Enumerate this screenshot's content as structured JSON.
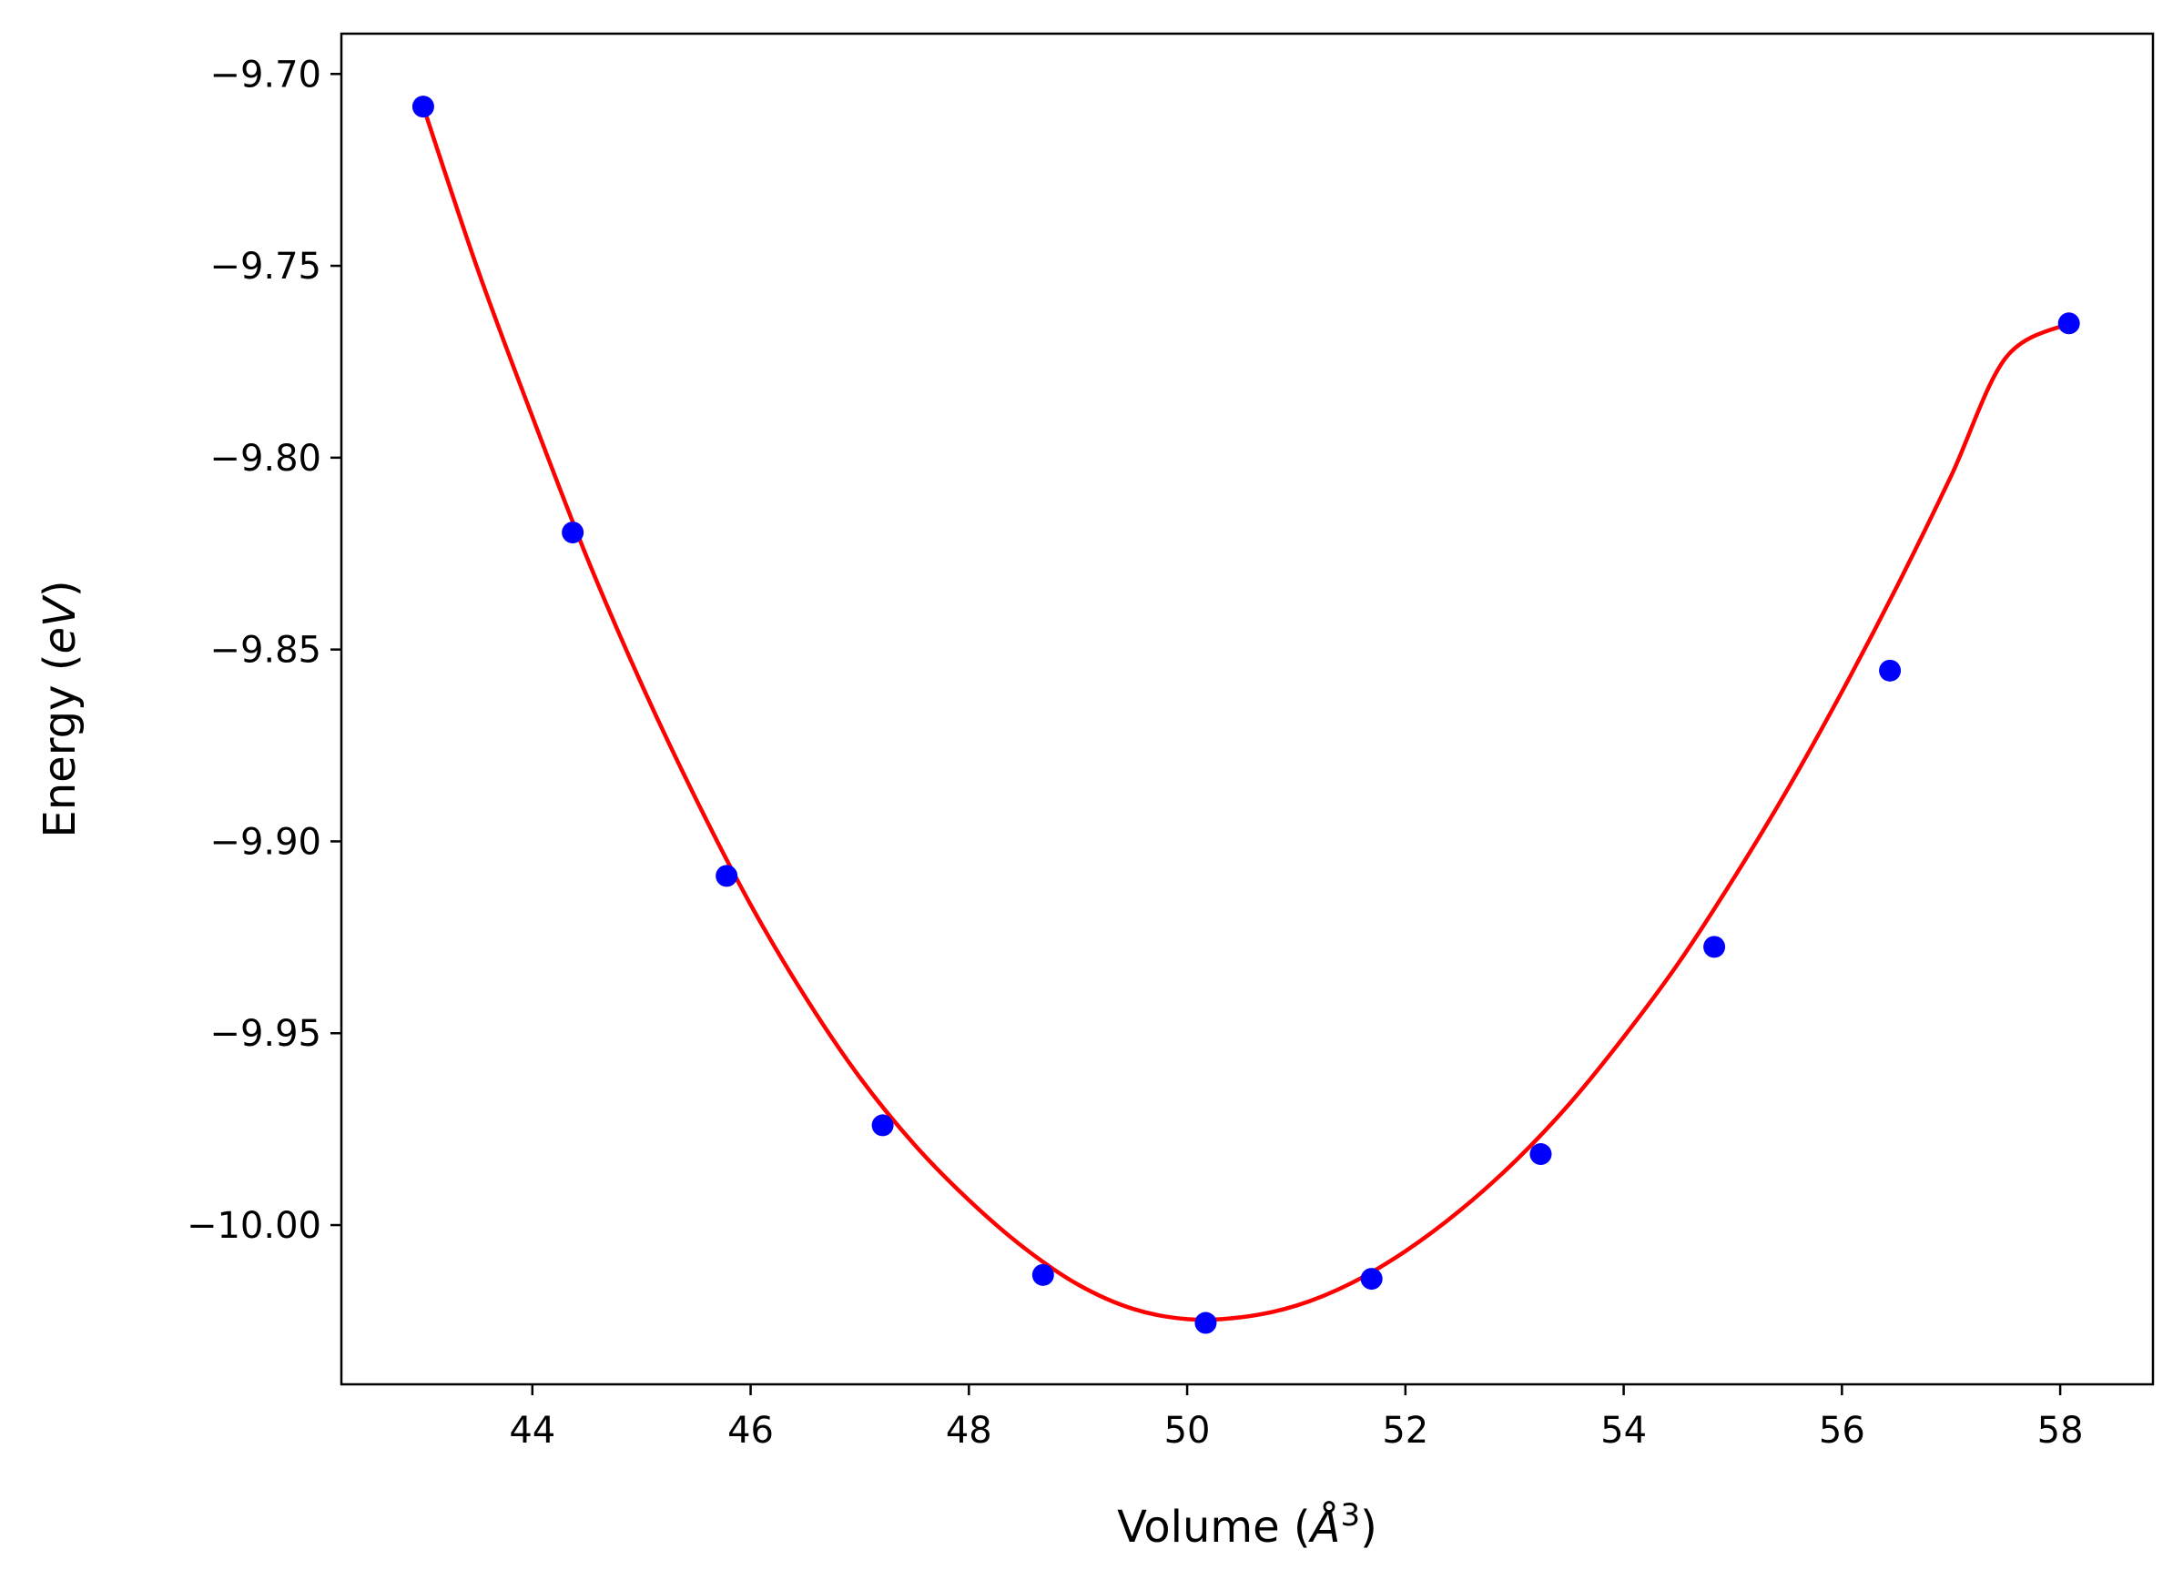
{
  "chart_data": {
    "type": "scatter",
    "title": "",
    "xlabel": "Volume (",
    "xlabel_unit": "Å",
    "xlabel_exp": "3",
    "xlabel_close": ")",
    "ylabel": "Energy (",
    "ylabel_unit": "eV",
    "ylabel_close": ")",
    "xlim": [
      42.25,
      58.85
    ],
    "ylim": [
      -10.0415,
      -9.6895
    ],
    "x_ticks": [
      44,
      46,
      48,
      50,
      52,
      54,
      56,
      58
    ],
    "x_tick_labels": [
      "44",
      "46",
      "48",
      "50",
      "52",
      "54",
      "56",
      "58"
    ],
    "y_ticks": [
      -9.7,
      -9.75,
      -9.8,
      -9.85,
      -9.9,
      -9.95,
      -10.0
    ],
    "y_tick_labels": [
      "−9.70",
      "−9.75",
      "−9.80",
      "−9.85",
      "−9.90",
      "−9.95",
      "−10.00"
    ],
    "grid": false,
    "series": [
      {
        "kind": "points",
        "color": "#0000ff",
        "x": [
          43.0,
          44.37,
          45.78,
          47.21,
          48.68,
          50.17,
          51.69,
          53.24,
          54.83,
          56.44,
          58.08
        ],
        "y": [
          -9.7085,
          -9.8195,
          -9.909,
          -9.974,
          -10.013,
          -10.0255,
          -10.014,
          -9.9815,
          -9.9275,
          -9.8555,
          -9.765
        ]
      },
      {
        "kind": "fit-line",
        "color": "#ff0000",
        "x": [
          43.0,
          43.5,
          44.0,
          44.5,
          45.0,
          45.5,
          46.0,
          46.5,
          47.0,
          47.5,
          48.0,
          48.5,
          49.0,
          49.5,
          50.0,
          50.5,
          51.0,
          51.5,
          52.0,
          52.5,
          53.0,
          53.5,
          54.0,
          54.5,
          55.0,
          55.5,
          56.0,
          56.5,
          57.0,
          57.5,
          58.08
        ],
        "y": [
          -9.7085,
          -9.751,
          -9.7893,
          -9.826,
          -9.859,
          -9.889,
          -9.9165,
          -9.9405,
          -9.9615,
          -9.979,
          -9.9935,
          -10.0058,
          -10.0155,
          -10.0218,
          -10.0245,
          -10.024,
          -10.021,
          -10.0152,
          -10.0068,
          -9.9962,
          -9.9835,
          -9.9685,
          -9.951,
          -9.9318,
          -9.91,
          -9.8865,
          -9.861,
          -9.8338,
          -9.8048,
          -9.774,
          -9.765
        ]
      }
    ]
  }
}
